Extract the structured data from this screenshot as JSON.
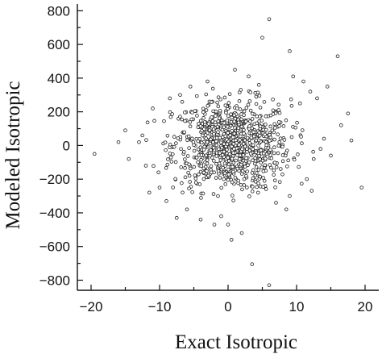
{
  "chart_data": {
    "type": "scatter",
    "title": "",
    "xlabel": "Exact Isotropic",
    "ylabel": "Modeled Isotropic",
    "xlim": [
      -22,
      22
    ],
    "ylim": [
      -860,
      840
    ],
    "x_ticks": [
      -20,
      -10,
      0,
      10,
      20
    ],
    "y_ticks": [
      800,
      600,
      400,
      200,
      0,
      -200,
      -400,
      -600,
      -800
    ],
    "x_tick_labels": [
      "−20",
      "−10",
      "0",
      "10",
      "20"
    ],
    "y_tick_labels": [
      "800",
      "600",
      "400",
      "200",
      "0",
      "−200",
      "−400",
      "−600",
      "−800"
    ],
    "grid": false,
    "legend": "none",
    "marker": "open-circle",
    "series": [
      {
        "outliers": [
          {
            "x": -19.5,
            "y": -50
          },
          {
            "x": 6.0,
            "y": 750
          },
          {
            "x": 5.0,
            "y": 640
          },
          {
            "x": 9.0,
            "y": 560
          },
          {
            "x": 16.0,
            "y": 530
          },
          {
            "x": 6.0,
            "y": -830
          },
          {
            "x": 3.5,
            "y": -705
          },
          {
            "x": 19.5,
            "y": -250
          },
          {
            "x": 17.5,
            "y": 190
          },
          {
            "x": 14.5,
            "y": 350
          },
          {
            "x": 16.5,
            "y": 120
          },
          {
            "x": -15.0,
            "y": 90
          },
          {
            "x": -14.5,
            "y": -80
          },
          {
            "x": -11.0,
            "y": 220
          },
          {
            "x": -7.5,
            "y": -430
          },
          {
            "x": -9.0,
            "y": -330
          },
          {
            "x": -10.0,
            "y": -250
          },
          {
            "x": 13.0,
            "y": 280
          },
          {
            "x": 11.5,
            "y": -200
          },
          {
            "x": 9.5,
            "y": 410
          },
          {
            "x": 1.0,
            "y": 450
          },
          {
            "x": -5.5,
            "y": 350
          },
          {
            "x": 0.5,
            "y": -560
          },
          {
            "x": -2.0,
            "y": -470
          },
          {
            "x": 2.0,
            "y": -520
          },
          {
            "x": -1.0,
            "y": -420
          },
          {
            "x": 12.5,
            "y": -80
          },
          {
            "x": 13.5,
            "y": -20
          },
          {
            "x": 14.0,
            "y": 40
          },
          {
            "x": -12.0,
            "y": -120
          },
          {
            "x": -13.0,
            "y": 20
          },
          {
            "x": -12.5,
            "y": 60
          },
          {
            "x": 8.5,
            "y": -380
          },
          {
            "x": 10.5,
            "y": 250
          },
          {
            "x": 15.0,
            "y": -60
          },
          {
            "x": -8.5,
            "y": 280
          },
          {
            "x": 11.0,
            "y": 380
          },
          {
            "x": -6.0,
            "y": -380
          },
          {
            "x": 7.0,
            "y": -340
          },
          {
            "x": -3.0,
            "y": 380
          },
          {
            "x": 3.0,
            "y": 410
          },
          {
            "x": 0.0,
            "y": -470
          },
          {
            "x": -4.0,
            "y": -440
          },
          {
            "x": 4.5,
            "y": 360
          },
          {
            "x": -11.5,
            "y": -280
          },
          {
            "x": 12.0,
            "y": 320
          },
          {
            "x": 9.0,
            "y": -300
          },
          {
            "x": -7.0,
            "y": 300
          },
          {
            "x": 18.0,
            "y": 30
          },
          {
            "x": -16.0,
            "y": 20
          }
        ],
        "core_cluster": {
          "count": 900,
          "center_x": 0.5,
          "center_y": 0,
          "std_x": 4.3,
          "std_y": 135,
          "note_x_range": [
            -12,
            13
          ],
          "note_y_range": [
            -330,
            380
          ]
        }
      }
    ]
  }
}
